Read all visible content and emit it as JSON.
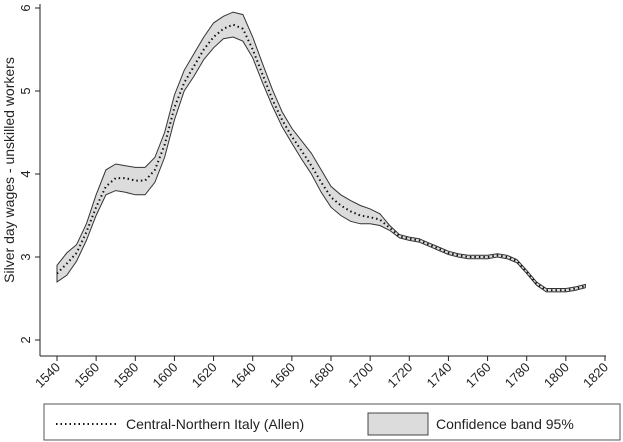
{
  "chart_data": {
    "type": "line",
    "title": "",
    "xlabel": "",
    "ylabel": "Silver day wages - unskilled workers",
    "xlim": [
      1540,
      1820
    ],
    "ylim": [
      2,
      6
    ],
    "x_ticks": [
      1540,
      1560,
      1580,
      1600,
      1620,
      1640,
      1660,
      1680,
      1700,
      1720,
      1740,
      1760,
      1780,
      1800,
      1820
    ],
    "y_ticks": [
      2,
      3,
      4,
      5,
      6
    ],
    "grid": false,
    "legend_position": "bottom",
    "series": [
      {
        "name": "Central-Northern Italy (Allen)",
        "style": "dotted",
        "color": "#111111",
        "x": [
          1540,
          1545,
          1550,
          1555,
          1560,
          1565,
          1570,
          1575,
          1580,
          1585,
          1590,
          1595,
          1600,
          1605,
          1610,
          1615,
          1620,
          1625,
          1630,
          1635,
          1640,
          1645,
          1650,
          1655,
          1660,
          1665,
          1670,
          1675,
          1680,
          1685,
          1690,
          1695,
          1700,
          1705,
          1710,
          1715,
          1720,
          1725,
          1730,
          1735,
          1740,
          1745,
          1750,
          1755,
          1760,
          1765,
          1770,
          1775,
          1780,
          1785,
          1790,
          1795,
          1800,
          1805,
          1810
        ],
        "y": [
          2.8,
          2.92,
          3.05,
          3.3,
          3.6,
          3.85,
          3.95,
          3.95,
          3.92,
          3.92,
          4.05,
          4.35,
          4.8,
          5.1,
          5.3,
          5.5,
          5.65,
          5.75,
          5.8,
          5.75,
          5.5,
          5.2,
          4.9,
          4.65,
          4.45,
          4.28,
          4.1,
          3.9,
          3.72,
          3.62,
          3.55,
          3.5,
          3.48,
          3.45,
          3.35,
          3.25,
          3.22,
          3.2,
          3.15,
          3.1,
          3.05,
          3.02,
          3.0,
          3.0,
          3.0,
          3.02,
          3.0,
          2.95,
          2.82,
          2.68,
          2.6,
          2.6,
          2.6,
          2.62,
          2.65
        ]
      },
      {
        "name": "Confidence band 95%",
        "type": "area-band",
        "color": "#dcdcdc",
        "x": [
          1540,
          1545,
          1550,
          1555,
          1560,
          1565,
          1570,
          1575,
          1580,
          1585,
          1590,
          1595,
          1600,
          1605,
          1610,
          1615,
          1620,
          1625,
          1630,
          1635,
          1640,
          1645,
          1650,
          1655,
          1660,
          1665,
          1670,
          1675,
          1680,
          1685,
          1690,
          1695,
          1700,
          1705,
          1710,
          1715,
          1720,
          1725,
          1730,
          1735,
          1740,
          1745,
          1750,
          1755,
          1760,
          1765,
          1770,
          1775,
          1780,
          1785,
          1790,
          1795,
          1800,
          1805,
          1810
        ],
        "lower": [
          2.7,
          2.78,
          2.95,
          3.2,
          3.5,
          3.75,
          3.8,
          3.78,
          3.75,
          3.75,
          3.9,
          4.2,
          4.65,
          5.0,
          5.18,
          5.38,
          5.52,
          5.63,
          5.65,
          5.6,
          5.4,
          5.1,
          4.82,
          4.57,
          4.37,
          4.18,
          4.0,
          3.78,
          3.6,
          3.5,
          3.43,
          3.4,
          3.4,
          3.38,
          3.32,
          3.23,
          3.2,
          3.18,
          3.13,
          3.08,
          3.03,
          3.0,
          2.98,
          2.98,
          2.98,
          3.0,
          2.98,
          2.93,
          2.8,
          2.66,
          2.58,
          2.58,
          2.58,
          2.6,
          2.63
        ],
        "upper": [
          2.9,
          3.05,
          3.15,
          3.4,
          3.75,
          4.05,
          4.12,
          4.1,
          4.08,
          4.08,
          4.2,
          4.5,
          4.95,
          5.25,
          5.45,
          5.65,
          5.82,
          5.9,
          5.95,
          5.92,
          5.65,
          5.33,
          5.02,
          4.75,
          4.55,
          4.4,
          4.25,
          4.05,
          3.85,
          3.75,
          3.68,
          3.62,
          3.58,
          3.52,
          3.38,
          3.27,
          3.24,
          3.22,
          3.17,
          3.12,
          3.07,
          3.04,
          3.02,
          3.02,
          3.02,
          3.04,
          3.02,
          2.97,
          2.84,
          2.7,
          2.62,
          2.62,
          2.62,
          2.64,
          2.67
        ]
      }
    ]
  }
}
